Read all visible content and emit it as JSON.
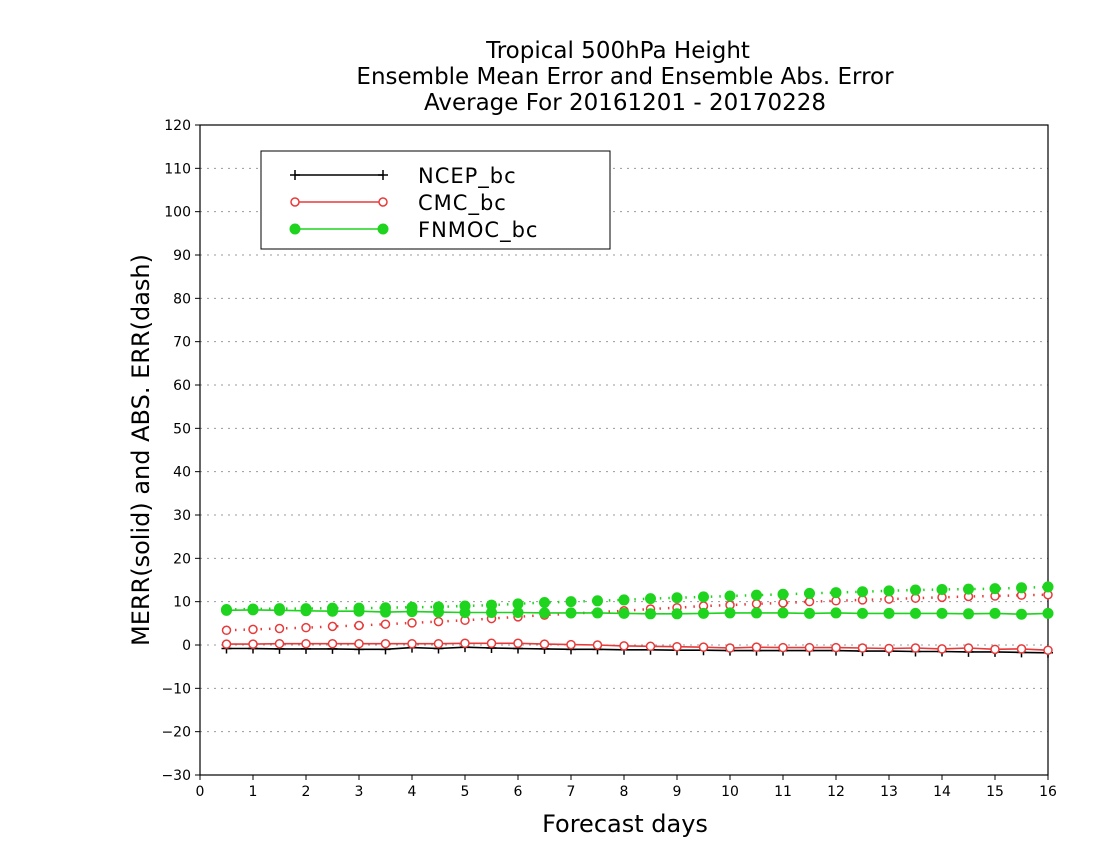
{
  "chart_data": {
    "type": "line",
    "title": [
      "Tropical 500hPa Height",
      "Ensemble Mean Error and Ensemble Abs. Error",
      "Average For 20161201 - 20170228"
    ],
    "xlabel": "Forecast days",
    "ylabel": "MERR(solid) and ABS. ERR(dash)",
    "xlim": [
      0,
      16
    ],
    "ylim": [
      -30,
      120
    ],
    "xticks": [
      0,
      1,
      2,
      3,
      4,
      5,
      6,
      7,
      8,
      9,
      10,
      11,
      12,
      13,
      14,
      15,
      16
    ],
    "yticks": [
      -30,
      -20,
      -10,
      0,
      10,
      20,
      30,
      40,
      50,
      60,
      70,
      80,
      90,
      100,
      110,
      120
    ],
    "grid": true,
    "legend_position": "top-left",
    "x": [
      0.5,
      1,
      1.5,
      2,
      2.5,
      3,
      3.5,
      4,
      4.5,
      5,
      5.5,
      6,
      6.5,
      7,
      7.5,
      8,
      8.5,
      9,
      9.5,
      10,
      10.5,
      11,
      11.5,
      12,
      12.5,
      13,
      13.5,
      14,
      14.5,
      15,
      15.5,
      16
    ],
    "series": [
      {
        "name": "NCEP_bc",
        "color": "#000000",
        "marker": "plus",
        "merr": [
          -0.8,
          -0.8,
          -0.9,
          -0.9,
          -0.9,
          -1.0,
          -1.0,
          -0.6,
          -0.8,
          -0.5,
          -0.7,
          -0.8,
          -0.9,
          -1.0,
          -1.0,
          -1.1,
          -1.1,
          -1.2,
          -1.2,
          -1.3,
          -1.3,
          -1.3,
          -1.3,
          -1.3,
          -1.4,
          -1.4,
          -1.5,
          -1.5,
          -1.6,
          -1.6,
          -1.7,
          -1.8
        ],
        "abs_err": []
      },
      {
        "name": "CMC_bc",
        "color": "#e83a3a",
        "marker": "open-circle",
        "merr": [
          0.2,
          0.2,
          0.3,
          0.3,
          0.3,
          0.3,
          0.3,
          0.3,
          0.3,
          0.4,
          0.4,
          0.4,
          0.2,
          0.1,
          0.0,
          -0.2,
          -0.3,
          -0.4,
          -0.5,
          -0.7,
          -0.5,
          -0.6,
          -0.6,
          -0.6,
          -0.7,
          -0.8,
          -0.7,
          -0.9,
          -0.7,
          -1.0,
          -0.9,
          -1.2
        ],
        "abs_err": [
          3.4,
          3.6,
          3.8,
          4.0,
          4.3,
          4.5,
          4.8,
          5.1,
          5.4,
          5.7,
          6.1,
          6.5,
          6.9,
          7.2,
          7.6,
          7.9,
          8.3,
          8.6,
          9.0,
          9.2,
          9.5,
          9.7,
          10.0,
          10.2,
          10.4,
          10.6,
          10.8,
          11.0,
          11.2,
          11.3,
          11.5,
          11.6
        ]
      },
      {
        "name": "FNMOC_bc",
        "color": "#1ed41e",
        "marker": "filled-circle",
        "merr": [
          8.0,
          8.1,
          8.0,
          7.9,
          7.8,
          7.8,
          7.6,
          7.7,
          7.6,
          7.5,
          7.5,
          7.5,
          7.4,
          7.4,
          7.4,
          7.3,
          7.2,
          7.2,
          7.3,
          7.4,
          7.4,
          7.4,
          7.3,
          7.4,
          7.3,
          7.3,
          7.3,
          7.3,
          7.2,
          7.3,
          7.1,
          7.3
        ],
        "abs_err": [
          8.2,
          8.3,
          8.4,
          8.4,
          8.5,
          8.5,
          8.6,
          8.7,
          8.8,
          9.0,
          9.2,
          9.5,
          9.8,
          10.0,
          10.2,
          10.4,
          10.7,
          10.9,
          11.1,
          11.3,
          11.5,
          11.7,
          11.9,
          12.1,
          12.3,
          12.5,
          12.7,
          12.8,
          12.9,
          13.0,
          13.2,
          13.4
        ]
      }
    ]
  }
}
